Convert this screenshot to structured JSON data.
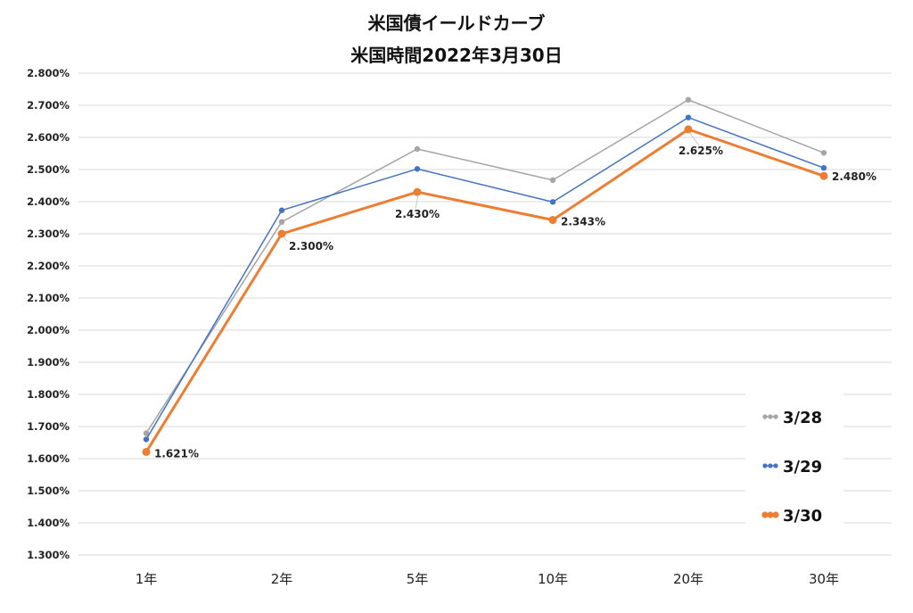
{
  "chart_data": {
    "type": "line",
    "title": "米国債イールドカーブ",
    "subtitle": "米国時間2022年3月30日",
    "categories": [
      "1年",
      "2年",
      "5年",
      "10年",
      "20年",
      "30年"
    ],
    "ylim": [
      1.3,
      2.8
    ],
    "ystep": 0.1,
    "ytick_format": "percent_3dp",
    "grid": true,
    "legend_position": "bottom-right",
    "series": [
      {
        "name": "3/28",
        "color": "#a5a5a5",
        "values": [
          1.679,
          2.337,
          2.564,
          2.467,
          2.717,
          2.552
        ],
        "show_labels": false
      },
      {
        "name": "3/29",
        "color": "#4472c4",
        "values": [
          1.66,
          2.373,
          2.502,
          2.399,
          2.662,
          2.505
        ],
        "show_labels": false
      },
      {
        "name": "3/30",
        "color": "#ed7d31",
        "values": [
          1.621,
          2.3,
          2.43,
          2.343,
          2.625,
          2.48
        ],
        "show_labels": true,
        "labels": [
          "1.621%",
          "2.300%",
          "2.430%",
          "2.343%",
          "2.625%",
          "2.480%"
        ]
      }
    ]
  }
}
